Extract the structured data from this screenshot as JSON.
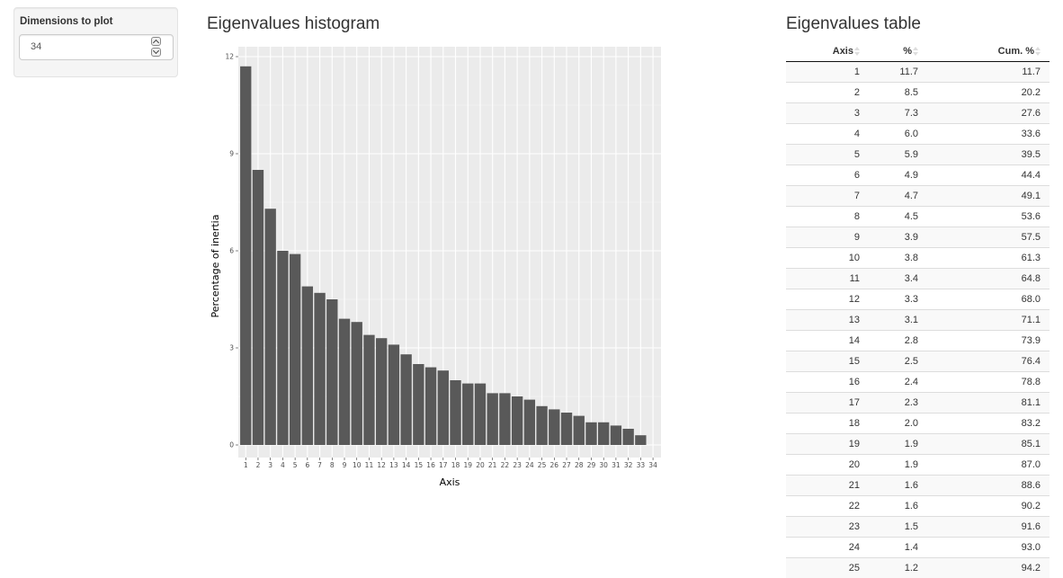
{
  "sidebar": {
    "label": "Dimensions to plot",
    "input_value": "34"
  },
  "histogram": {
    "title": "Eigenvalues histogram"
  },
  "chart_data": {
    "type": "bar",
    "categories": [
      "1",
      "2",
      "3",
      "4",
      "5",
      "6",
      "7",
      "8",
      "9",
      "10",
      "11",
      "12",
      "13",
      "14",
      "15",
      "16",
      "17",
      "18",
      "19",
      "20",
      "21",
      "22",
      "23",
      "24",
      "25",
      "26",
      "27",
      "28",
      "29",
      "30",
      "31",
      "32",
      "33",
      "34"
    ],
    "values": [
      11.7,
      8.5,
      7.3,
      6.0,
      5.9,
      4.9,
      4.7,
      4.5,
      3.9,
      3.8,
      3.4,
      3.3,
      3.1,
      2.8,
      2.5,
      2.4,
      2.3,
      2.0,
      1.9,
      1.9,
      1.6,
      1.6,
      1.5,
      1.4,
      1.2,
      1.1,
      1.0,
      0.9,
      0.7,
      0.7,
      0.6,
      0.5,
      0.3,
      0
    ],
    "xlabel": "Axis",
    "ylabel": "Percentage of inertia",
    "ylim": [
      0,
      12.3
    ],
    "yticks": [
      "0",
      "3",
      "6",
      "9",
      "12"
    ],
    "bar_color": "#595959",
    "panel_color": "#ebebeb",
    "grid": true
  },
  "table": {
    "title": "Eigenvalues table",
    "headers": [
      "Axis",
      "%",
      "Cum. %"
    ],
    "rows": [
      [
        "1",
        "11.7",
        "11.7"
      ],
      [
        "2",
        "8.5",
        "20.2"
      ],
      [
        "3",
        "7.3",
        "27.6"
      ],
      [
        "4",
        "6.0",
        "33.6"
      ],
      [
        "5",
        "5.9",
        "39.5"
      ],
      [
        "6",
        "4.9",
        "44.4"
      ],
      [
        "7",
        "4.7",
        "49.1"
      ],
      [
        "8",
        "4.5",
        "53.6"
      ],
      [
        "9",
        "3.9",
        "57.5"
      ],
      [
        "10",
        "3.8",
        "61.3"
      ],
      [
        "11",
        "3.4",
        "64.8"
      ],
      [
        "12",
        "3.3",
        "68.0"
      ],
      [
        "13",
        "3.1",
        "71.1"
      ],
      [
        "14",
        "2.8",
        "73.9"
      ],
      [
        "15",
        "2.5",
        "76.4"
      ],
      [
        "16",
        "2.4",
        "78.8"
      ],
      [
        "17",
        "2.3",
        "81.1"
      ],
      [
        "18",
        "2.0",
        "83.2"
      ],
      [
        "19",
        "1.9",
        "85.1"
      ],
      [
        "20",
        "1.9",
        "87.0"
      ],
      [
        "21",
        "1.6",
        "88.6"
      ],
      [
        "22",
        "1.6",
        "90.2"
      ],
      [
        "23",
        "1.5",
        "91.6"
      ],
      [
        "24",
        "1.4",
        "93.0"
      ],
      [
        "25",
        "1.2",
        "94.2"
      ]
    ]
  }
}
